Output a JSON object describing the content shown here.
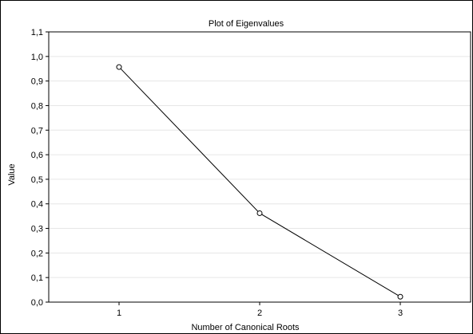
{
  "chart_data": {
    "type": "line",
    "title": "Plot of Eigenvalues",
    "xlabel": "Number of Canonical Roots",
    "ylabel": "Value",
    "x": [
      1,
      2,
      3
    ],
    "x_tick_labels": [
      "1",
      "2",
      "3"
    ],
    "xlim": [
      0.5,
      3.5
    ],
    "ylim": [
      0.0,
      1.1
    ],
    "y_ticks": [
      0.0,
      0.1,
      0.2,
      0.3,
      0.4,
      0.5,
      0.6,
      0.7,
      0.8,
      0.9,
      1.0,
      1.1
    ],
    "y_tick_labels": [
      "0,0",
      "0,1",
      "0,2",
      "0,3",
      "0,4",
      "0,5",
      "0,6",
      "0,7",
      "0,8",
      "0,9",
      "1,0",
      "1,1"
    ],
    "series": [
      {
        "values": [
          0.957,
          0.362,
          0.022
        ],
        "marker": "open-circle",
        "color": "#000000"
      }
    ],
    "grid": true,
    "grid_color": "#e6e6e6",
    "legend": "none"
  }
}
